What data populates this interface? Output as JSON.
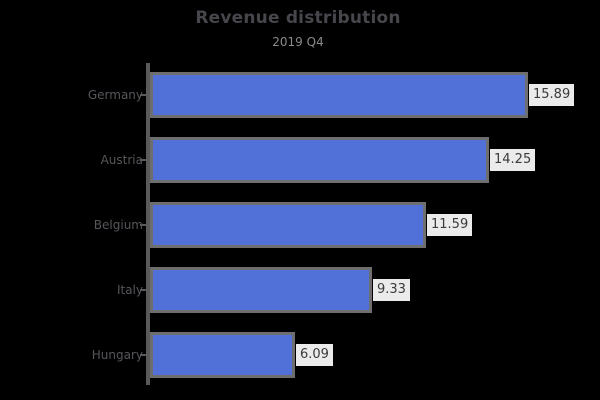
{
  "window": {
    "background": "#000000"
  },
  "chart_data": {
    "type": "bar",
    "orientation": "horizontal",
    "title": "Revenue distribution",
    "subtitle": "2019 Q4",
    "categories": [
      "Germany",
      "Austria",
      "Belgium",
      "Italy",
      "Hungary"
    ],
    "values": [
      15.89,
      14.25,
      11.59,
      9.33,
      6.09
    ],
    "value_labels": [
      "15.89",
      "14.25",
      "11.59",
      "9.33",
      "6.09"
    ],
    "xlabel": "",
    "ylabel": "",
    "xlim": [
      0,
      16.5
    ],
    "grid": false,
    "legend": false,
    "colors": {
      "bar_fill": "#5170d8",
      "bar_edge": "#6e6e6e",
      "axis_line": "#5a5a5a",
      "title_text": "#46464c",
      "subtitle_text": "#8a8a8a",
      "category_text": "#56565c",
      "value_text": "#3a3a3a",
      "value_box_bg": "#ebebeb",
      "background": "#000000"
    }
  }
}
